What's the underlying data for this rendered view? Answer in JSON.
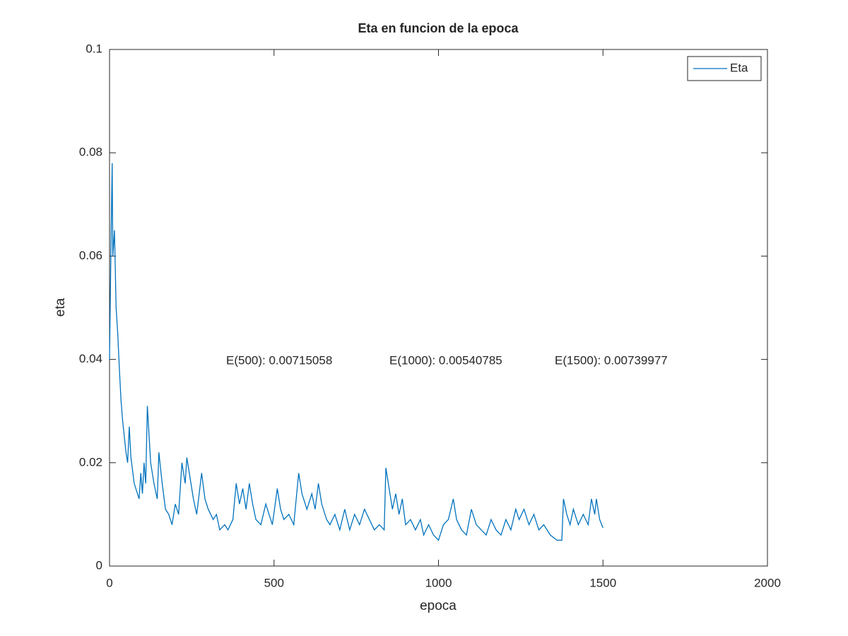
{
  "chart_data": {
    "type": "line",
    "title": "Eta en funcion de la epoca",
    "x_label": "epoca",
    "y_label": "eta",
    "x": [
      0,
      5,
      8,
      10,
      15,
      20,
      25,
      30,
      35,
      40,
      50,
      55,
      60,
      65,
      75,
      85,
      90,
      95,
      100,
      105,
      110,
      115,
      125,
      135,
      145,
      150,
      160,
      170,
      180,
      190,
      200,
      210,
      220,
      230,
      235,
      245,
      255,
      265,
      280,
      290,
      300,
      315,
      325,
      335,
      350,
      360,
      375,
      385,
      395,
      405,
      415,
      425,
      435,
      445,
      460,
      475,
      485,
      495,
      510,
      520,
      530,
      545,
      560,
      575,
      585,
      600,
      615,
      625,
      635,
      645,
      660,
      670,
      685,
      700,
      715,
      730,
      745,
      760,
      775,
      790,
      805,
      820,
      835,
      840,
      850,
      860,
      870,
      880,
      890,
      900,
      915,
      930,
      945,
      955,
      970,
      985,
      1000,
      1015,
      1030,
      1045,
      1055,
      1070,
      1085,
      1100,
      1115,
      1130,
      1145,
      1160,
      1175,
      1190,
      1205,
      1220,
      1235,
      1245,
      1260,
      1275,
      1290,
      1305,
      1320,
      1340,
      1360,
      1375,
      1380,
      1390,
      1400,
      1410,
      1425,
      1440,
      1455,
      1465,
      1475,
      1480,
      1490,
      1500
    ],
    "series": [
      {
        "name": "Eta",
        "color": "#0072bd",
        "values": [
          0.04,
          0.065,
          0.078,
          0.06,
          0.065,
          0.05,
          0.045,
          0.038,
          0.032,
          0.028,
          0.022,
          0.02,
          0.027,
          0.021,
          0.016,
          0.014,
          0.013,
          0.018,
          0.014,
          0.02,
          0.016,
          0.031,
          0.02,
          0.016,
          0.013,
          0.022,
          0.016,
          0.011,
          0.01,
          0.008,
          0.012,
          0.01,
          0.02,
          0.016,
          0.021,
          0.017,
          0.013,
          0.01,
          0.018,
          0.013,
          0.011,
          0.009,
          0.01,
          0.007,
          0.008,
          0.007,
          0.009,
          0.016,
          0.012,
          0.015,
          0.011,
          0.016,
          0.012,
          0.009,
          0.008,
          0.012,
          0.01,
          0.008,
          0.015,
          0.011,
          0.009,
          0.01,
          0.008,
          0.018,
          0.014,
          0.011,
          0.014,
          0.011,
          0.016,
          0.012,
          0.009,
          0.008,
          0.01,
          0.007,
          0.011,
          0.007,
          0.01,
          0.008,
          0.011,
          0.009,
          0.007,
          0.008,
          0.007,
          0.019,
          0.015,
          0.011,
          0.014,
          0.01,
          0.013,
          0.008,
          0.009,
          0.007,
          0.009,
          0.006,
          0.008,
          0.006,
          0.005,
          0.008,
          0.009,
          0.013,
          0.009,
          0.007,
          0.006,
          0.011,
          0.008,
          0.007,
          0.006,
          0.009,
          0.007,
          0.006,
          0.009,
          0.007,
          0.011,
          0.009,
          0.011,
          0.008,
          0.01,
          0.007,
          0.008,
          0.006,
          0.005,
          0.005,
          0.013,
          0.01,
          0.008,
          0.011,
          0.008,
          0.01,
          0.008,
          0.013,
          0.01,
          0.013,
          0.009,
          0.0074
        ]
      }
    ],
    "xlim": [
      0,
      2000
    ],
    "xticks": [
      0,
      500,
      1000,
      1500,
      2000
    ],
    "ylim": [
      0,
      0.1
    ],
    "yticks": [
      0,
      0.02,
      0.04,
      0.06,
      0.08,
      0.1
    ],
    "annotations": [
      "E(500): 0.00715058",
      "E(1000): 0.00540785",
      "E(1500): 0.00739977"
    ],
    "legend": "northeast",
    "grid": false
  }
}
